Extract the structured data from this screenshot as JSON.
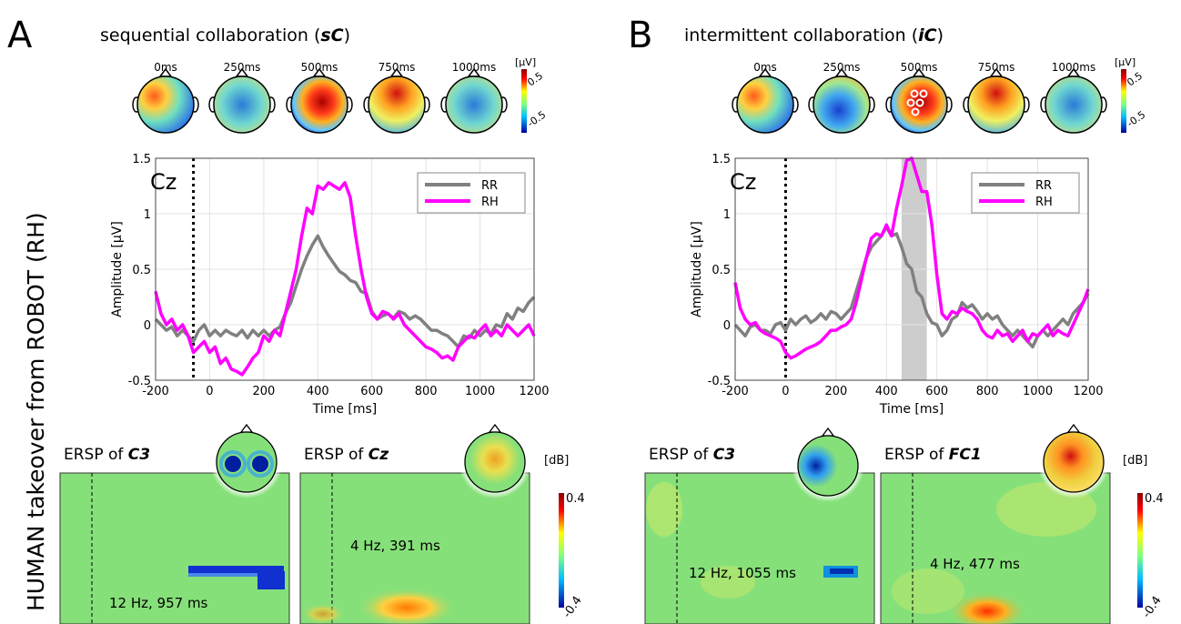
{
  "side_label": "HUMAN takeover from ROBOT (RH)",
  "panels": [
    {
      "letter": "A",
      "title": "sequential collaboration (sC)",
      "title_plain": "sequential collaboration (",
      "title_emph": "sC",
      "title_close": ")",
      "topo_times": [
        "0ms",
        "250ms",
        "500ms",
        "750ms",
        "1000ms"
      ],
      "topo_unit": "[µV]",
      "topo_ticks": [
        "0.5",
        "-0.5"
      ],
      "erp_channel": "Cz",
      "ersp_left_label": "ERSP of ",
      "ersp_left_channel": "C3",
      "ersp_left_annotation": "12 Hz, 957 ms",
      "ersp_right_label": "ERSP of ",
      "ersp_right_channel": "Cz",
      "ersp_right_annotation": "4 Hz, 391 ms",
      "ersp_unit": "[dB]",
      "ersp_ticks": [
        "0.4",
        "-0.4"
      ]
    },
    {
      "letter": "B",
      "title": "intermittent collaboration (iC)",
      "title_plain": "intermittent collaboration (",
      "title_emph": "iC",
      "title_close": ")",
      "topo_times": [
        "0ms",
        "250ms",
        "500ms",
        "750ms",
        "1000ms"
      ],
      "topo_unit": "[µV]",
      "topo_ticks": [
        "0.5",
        "-0.5"
      ],
      "erp_channel": "Cz",
      "ersp_left_label": "ERSP of ",
      "ersp_left_channel": "C3",
      "ersp_left_annotation": "12 Hz, 1055 ms",
      "ersp_right_label": "ERSP of ",
      "ersp_right_channel": "FC1",
      "ersp_right_annotation": "4 Hz, 477 ms",
      "ersp_unit": "[dB]",
      "ersp_ticks": [
        "0.4",
        "-0.4"
      ]
    }
  ],
  "colors": {
    "RR": "#808080",
    "RH": "#ff00ff",
    "ersp_bg": "#86e07a",
    "sig_band": "#c8c8c8"
  },
  "chart_data": [
    {
      "type": "line",
      "panel": "A",
      "xlabel": "Time [ms]",
      "ylabel": "Amplitude [µV]",
      "xlim": [
        -200,
        1200
      ],
      "ylim": [
        -0.5,
        1.5
      ],
      "xticks": [
        "-200",
        "0",
        "200",
        "400",
        "600",
        "800",
        "1000",
        "1200"
      ],
      "yticks": [
        "-0.5",
        "0",
        "0.5",
        "1",
        "1.5"
      ],
      "ytick_labels_shown": [
        "-0.5",
        "0",
        "0.5",
        "1",
        "1.5"
      ],
      "grid": true,
      "legend_position": "top-right",
      "event_line_x": -60,
      "series": [
        {
          "name": "RR",
          "x": [
            -200,
            -180,
            -160,
            -140,
            -120,
            -100,
            -80,
            -60,
            -40,
            -20,
            0,
            20,
            40,
            60,
            80,
            100,
            120,
            140,
            160,
            180,
            200,
            220,
            240,
            260,
            280,
            300,
            320,
            340,
            360,
            380,
            400,
            420,
            440,
            460,
            480,
            500,
            520,
            540,
            560,
            580,
            600,
            620,
            640,
            660,
            680,
            700,
            720,
            740,
            760,
            780,
            800,
            820,
            840,
            860,
            880,
            900,
            920,
            940,
            960,
            980,
            1000,
            1020,
            1040,
            1060,
            1080,
            1100,
            1120,
            1140,
            1160,
            1180,
            1200
          ],
          "y": [
            0.05,
            0.0,
            -0.05,
            -0.02,
            -0.1,
            -0.05,
            -0.1,
            -0.15,
            -0.05,
            0.0,
            -0.1,
            -0.05,
            -0.1,
            -0.05,
            -0.08,
            -0.1,
            -0.05,
            -0.12,
            -0.05,
            -0.1,
            -0.05,
            -0.1,
            -0.05,
            -0.02,
            0.1,
            0.2,
            0.35,
            0.5,
            0.62,
            0.72,
            0.8,
            0.7,
            0.62,
            0.55,
            0.48,
            0.45,
            0.4,
            0.38,
            0.3,
            0.28,
            0.12,
            0.05,
            0.08,
            0.1,
            0.06,
            0.12,
            0.1,
            0.05,
            0.08,
            0.05,
            0.0,
            -0.05,
            -0.05,
            -0.08,
            -0.1,
            -0.15,
            -0.2,
            -0.1,
            -0.12,
            -0.05,
            -0.1,
            -0.05,
            -0.08,
            0.0,
            -0.02,
            0.1,
            0.05,
            0.15,
            0.12,
            0.2,
            0.25
          ]
        },
        {
          "name": "RH",
          "x": [
            -200,
            -180,
            -160,
            -140,
            -120,
            -100,
            -80,
            -60,
            -40,
            -20,
            0,
            20,
            40,
            60,
            80,
            100,
            120,
            140,
            160,
            180,
            200,
            220,
            240,
            260,
            280,
            300,
            320,
            340,
            360,
            380,
            400,
            420,
            440,
            460,
            480,
            500,
            520,
            540,
            560,
            580,
            600,
            620,
            640,
            660,
            680,
            700,
            720,
            740,
            760,
            780,
            800,
            820,
            840,
            860,
            880,
            900,
            920,
            940,
            960,
            980,
            1000,
            1020,
            1040,
            1060,
            1080,
            1100,
            1120,
            1140,
            1160,
            1180,
            1200
          ],
          "y": [
            0.3,
            0.1,
            0.0,
            0.05,
            -0.05,
            0.0,
            -0.1,
            -0.25,
            -0.2,
            -0.15,
            -0.25,
            -0.2,
            -0.35,
            -0.3,
            -0.4,
            -0.42,
            -0.45,
            -0.38,
            -0.3,
            -0.25,
            -0.1,
            -0.15,
            -0.05,
            -0.1,
            0.1,
            0.3,
            0.5,
            0.8,
            1.05,
            1.0,
            1.25,
            1.22,
            1.28,
            1.25,
            1.22,
            1.28,
            1.15,
            0.8,
            0.5,
            0.25,
            0.1,
            0.05,
            0.12,
            0.1,
            0.05,
            0.1,
            0.0,
            -0.05,
            -0.1,
            -0.15,
            -0.2,
            -0.22,
            -0.25,
            -0.3,
            -0.28,
            -0.32,
            -0.2,
            -0.15,
            -0.1,
            -0.12,
            -0.05,
            0.0,
            -0.1,
            -0.05,
            -0.1,
            0.0,
            -0.05,
            -0.1,
            -0.05,
            0.0,
            -0.1
          ]
        }
      ]
    },
    {
      "type": "line",
      "panel": "B",
      "xlabel": "Time [ms]",
      "ylabel": "Amplitude [µV]",
      "xlim": [
        -200,
        1200
      ],
      "ylim": [
        -0.5,
        1.5
      ],
      "xticks": [
        "-200",
        "0",
        "200",
        "400",
        "600",
        "800",
        "1000",
        "1200"
      ],
      "yticks": [
        "-0.5",
        "0",
        "0.5",
        "1",
        "1.5"
      ],
      "grid": true,
      "legend_position": "top-right",
      "event_line_x": 0,
      "significance_band_ms": [
        460,
        560
      ],
      "series": [
        {
          "name": "RR",
          "x": [
            -200,
            -180,
            -160,
            -140,
            -120,
            -100,
            -80,
            -60,
            -40,
            -20,
            0,
            20,
            40,
            60,
            80,
            100,
            120,
            140,
            160,
            180,
            200,
            220,
            240,
            260,
            280,
            300,
            320,
            340,
            360,
            380,
            400,
            420,
            440,
            460,
            480,
            500,
            520,
            540,
            560,
            580,
            600,
            620,
            640,
            660,
            680,
            700,
            720,
            740,
            760,
            780,
            800,
            820,
            840,
            860,
            880,
            900,
            920,
            940,
            960,
            980,
            1000,
            1020,
            1040,
            1060,
            1080,
            1100,
            1120,
            1140,
            1160,
            1180,
            1200
          ],
          "y": [
            0.0,
            -0.05,
            -0.1,
            -0.02,
            0.0,
            -0.05,
            -0.05,
            -0.08,
            0.0,
            0.02,
            -0.05,
            0.05,
            0.0,
            0.05,
            0.08,
            0.02,
            0.05,
            0.1,
            0.05,
            0.12,
            0.1,
            0.05,
            0.1,
            0.15,
            0.3,
            0.45,
            0.6,
            0.7,
            0.75,
            0.8,
            0.88,
            0.8,
            0.82,
            0.7,
            0.55,
            0.5,
            0.3,
            0.25,
            0.1,
            0.02,
            0.0,
            -0.1,
            -0.05,
            0.05,
            0.08,
            0.2,
            0.15,
            0.18,
            0.12,
            0.05,
            0.1,
            0.05,
            0.08,
            0.0,
            -0.05,
            -0.1,
            -0.05,
            -0.1,
            -0.15,
            -0.2,
            -0.1,
            -0.05,
            -0.1,
            -0.05,
            0.0,
            0.05,
            0.0,
            0.1,
            0.15,
            0.2,
            0.28
          ]
        },
        {
          "name": "RH",
          "x": [
            -200,
            -180,
            -160,
            -140,
            -120,
            -100,
            -80,
            -60,
            -40,
            -20,
            0,
            20,
            40,
            60,
            80,
            100,
            120,
            140,
            160,
            180,
            200,
            220,
            240,
            260,
            280,
            300,
            320,
            340,
            360,
            380,
            400,
            420,
            440,
            460,
            480,
            500,
            520,
            540,
            560,
            580,
            600,
            620,
            640,
            660,
            680,
            700,
            720,
            740,
            760,
            780,
            800,
            820,
            840,
            860,
            880,
            900,
            920,
            940,
            960,
            980,
            1000,
            1020,
            1040,
            1060,
            1080,
            1100,
            1120,
            1140,
            1160,
            1180,
            1200
          ],
          "y": [
            0.38,
            0.15,
            0.05,
            0.0,
            0.02,
            -0.05,
            -0.08,
            -0.1,
            -0.12,
            -0.15,
            -0.25,
            -0.3,
            -0.28,
            -0.25,
            -0.22,
            -0.2,
            -0.18,
            -0.15,
            -0.1,
            -0.05,
            -0.05,
            -0.02,
            0.0,
            0.05,
            0.2,
            0.4,
            0.6,
            0.78,
            0.82,
            0.8,
            0.9,
            0.8,
            1.05,
            1.25,
            1.48,
            1.5,
            1.35,
            1.2,
            1.2,
            0.9,
            0.45,
            0.1,
            0.05,
            0.12,
            0.1,
            0.15,
            0.12,
            0.1,
            0.05,
            -0.05,
            -0.1,
            -0.12,
            -0.05,
            -0.1,
            -0.08,
            -0.15,
            -0.1,
            -0.05,
            -0.15,
            -0.08,
            -0.1,
            -0.05,
            0.0,
            -0.1,
            -0.05,
            -0.08,
            -0.1,
            0.0,
            0.1,
            0.2,
            0.32
          ]
        }
      ]
    }
  ]
}
